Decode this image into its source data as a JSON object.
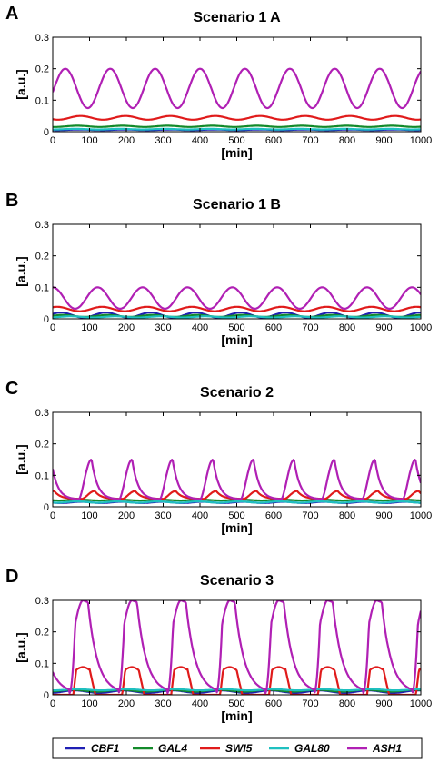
{
  "legend": {
    "entries": [
      {
        "label": "CBF1",
        "color": "#1f1fb4"
      },
      {
        "label": "GAL4",
        "color": "#138a2a"
      },
      {
        "label": "SWI5",
        "color": "#e01b1b"
      },
      {
        "label": "GAL80",
        "color": "#1fc0c0"
      },
      {
        "label": "ASH1",
        "color": "#b020b4"
      }
    ]
  },
  "chart_data": [
    {
      "type": "line",
      "letter": "A",
      "title": "Scenario 1 A",
      "xlabel": "[min]",
      "ylabel": "[a.u.]",
      "xlim": [
        0,
        1000
      ],
      "ylim": [
        0,
        0.3
      ],
      "xticks": [
        0,
        100,
        200,
        300,
        400,
        500,
        600,
        700,
        800,
        900,
        1000
      ],
      "yticks": [
        0,
        0.1,
        0.2,
        0.3
      ],
      "period": 122,
      "grid": false,
      "series": [
        {
          "name": "CBF1",
          "base": 0.005,
          "amp": 0.002,
          "phase": 0.4,
          "shape": "sin"
        },
        {
          "name": "GAL4",
          "base": 0.015,
          "amp": 0.004,
          "phase": 0.45,
          "shape": "sin"
        },
        {
          "name": "SWI5",
          "base": 0.038,
          "amp": 0.012,
          "phase": 0.38,
          "shape": "sin"
        },
        {
          "name": "GAL80",
          "base": 0.007,
          "amp": 0.002,
          "phase": 0.5,
          "shape": "sin"
        },
        {
          "name": "ASH1",
          "base": 0.075,
          "amp": 0.125,
          "phase": 0.72,
          "shape": "sin"
        }
      ]
    },
    {
      "type": "line",
      "letter": "B",
      "title": "Scenario 1 B",
      "xlabel": "[min]",
      "ylabel": "[a.u.]",
      "xlim": [
        0,
        1000
      ],
      "ylim": [
        0,
        0.3
      ],
      "xticks": [
        0,
        100,
        200,
        300,
        400,
        500,
        600,
        700,
        800,
        900,
        1000
      ],
      "yticks": [
        0,
        0.1,
        0.2,
        0.3
      ],
      "period": 122,
      "grid": false,
      "series": [
        {
          "name": "CBF1",
          "base": 0.004,
          "amp": 0.016,
          "phase": 0.82,
          "shape": "sin"
        },
        {
          "name": "GAL4",
          "base": 0.006,
          "amp": 0.006,
          "phase": 0.78,
          "shape": "sin"
        },
        {
          "name": "SWI5",
          "base": 0.024,
          "amp": 0.014,
          "phase": 0.9,
          "shape": "sin"
        },
        {
          "name": "GAL80",
          "base": 0.004,
          "amp": 0.004,
          "phase": 0.6,
          "shape": "sin"
        },
        {
          "name": "ASH1",
          "base": 0.032,
          "amp": 0.068,
          "phase": 0.0,
          "shape": "sin"
        }
      ]
    },
    {
      "type": "line",
      "letter": "C",
      "title": "Scenario 2",
      "xlabel": "[min]",
      "ylabel": "[a.u.]",
      "xlim": [
        0,
        1000
      ],
      "ylim": [
        0,
        0.3
      ],
      "xticks": [
        0,
        100,
        200,
        300,
        400,
        500,
        600,
        700,
        800,
        900,
        1000
      ],
      "yticks": [
        0,
        0.1,
        0.2,
        0.3
      ],
      "period": 110,
      "grid": false,
      "series": [
        {
          "name": "CBF1",
          "base": 0.012,
          "amp": 0.004,
          "phase": 0.3,
          "shape": "sin"
        },
        {
          "name": "GAL4",
          "base": 0.02,
          "amp": 0.003,
          "phase": 0.35,
          "shape": "sin"
        },
        {
          "name": "SWI5",
          "base": 0.025,
          "amp": 0.025,
          "phase": 0.28,
          "shape": "spike"
        },
        {
          "name": "GAL80",
          "base": 0.013,
          "amp": 0.004,
          "phase": 0.4,
          "shape": "sin"
        },
        {
          "name": "ASH1",
          "base": 0.023,
          "amp": 0.127,
          "phase": 0.36,
          "shape": "spike"
        }
      ]
    },
    {
      "type": "line",
      "letter": "D",
      "title": "Scenario 3",
      "xlabel": "[min]",
      "ylabel": "[a.u.]",
      "xlim": [
        0,
        1000
      ],
      "ylim": [
        0,
        0.3
      ],
      "xticks": [
        0,
        100,
        200,
        300,
        400,
        500,
        600,
        700,
        800,
        900,
        1000
      ],
      "yticks": [
        0,
        0.1,
        0.2,
        0.3
      ],
      "period": 133,
      "grid": false,
      "series": [
        {
          "name": "CBF1",
          "base": 0.006,
          "amp": 0.008,
          "phase": 0.55,
          "shape": "sin"
        },
        {
          "name": "GAL4",
          "base": 0.01,
          "amp": 0.006,
          "phase": 0.6,
          "shape": "sin"
        },
        {
          "name": "SWI5",
          "base": 0.0,
          "amp": 0.088,
          "phase": 0.58,
          "shape": "plateau-low"
        },
        {
          "name": "GAL80",
          "base": 0.014,
          "amp": 0.004,
          "phase": 0.5,
          "shape": "sin"
        },
        {
          "name": "ASH1",
          "base": 0.005,
          "amp": 0.295,
          "phase": 0.66,
          "shape": "plateau"
        }
      ]
    }
  ]
}
